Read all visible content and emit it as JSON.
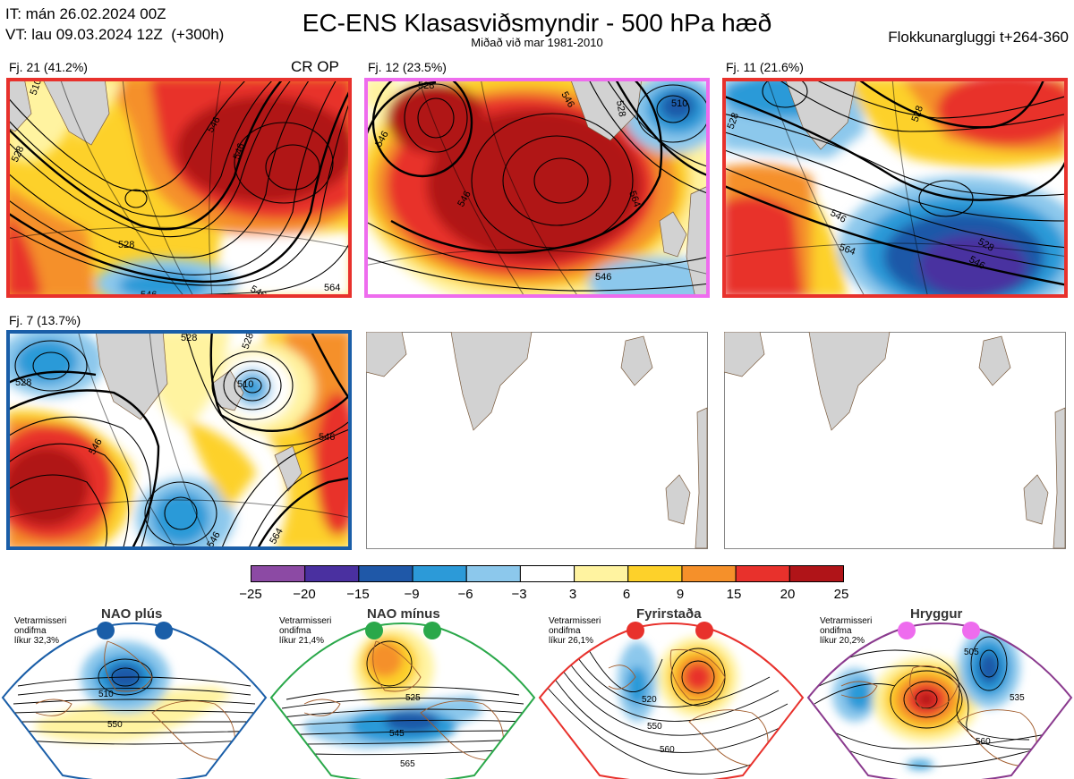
{
  "header": {
    "it_line": "IT: mán 26.02.2024 00Z",
    "vt_line": "VT: lau 09.03.2024 12Z  (+300h)",
    "title": "EC-ENS Klasasviðsmyndir - 500 hPa hæð",
    "subtitle": "Miðað við mar 1981-2010",
    "window": "Flokkunargluggi t+264-360"
  },
  "panels": [
    {
      "label": "Fj. 21 (41.2%)",
      "tag": "CR OP",
      "border": "#e8312c",
      "contours": [
        "510",
        "528",
        "528",
        "546",
        "546",
        "546",
        "564",
        "546"
      ]
    },
    {
      "label": "Fj. 12 (23.5%)",
      "tag": "",
      "border": "#ee6cee",
      "contours": [
        "528",
        "546",
        "546",
        "546",
        "564",
        "510",
        "528",
        "546"
      ]
    },
    {
      "label": "Fj. 11 (21.6%)",
      "tag": "",
      "border": "#e8312c",
      "contours": [
        "528",
        "528",
        "546",
        "564",
        "528",
        "546"
      ]
    },
    {
      "label": "Fj. 7 (13.7%)",
      "tag": "",
      "border": "#1a5ea8",
      "contours": [
        "528",
        "528",
        "546",
        "510",
        "546",
        "528",
        "546",
        "564"
      ]
    }
  ],
  "colorbar": {
    "ticks": [
      "−25",
      "−20",
      "−15",
      "−9",
      "−6",
      "−3",
      "3",
      "6",
      "9",
      "15",
      "20",
      "25"
    ],
    "colors": [
      "#8c4aa4",
      "#4a30a0",
      "#1f58a8",
      "#2c9ad8",
      "#8cc8ec",
      "#ffffff",
      "#fff3a0",
      "#fdd12a",
      "#f5902a",
      "#e8312c",
      "#b01418"
    ]
  },
  "regimes": [
    {
      "title": "NAO plús",
      "color": "#1a5ea8",
      "dot_color": "#1a5ea8",
      "info": [
        "Vetrarmisseri",
        "ondifma",
        "líkur 32,3%"
      ],
      "contours": [
        "510",
        "550"
      ]
    },
    {
      "title": "NAO mínus",
      "color": "#2aa84a",
      "dot_color": "#2aa84a",
      "info": [
        "Vetrarmisseri",
        "ondifma",
        "líkur 21,4%"
      ],
      "contours": [
        "525",
        "545",
        "565"
      ]
    },
    {
      "title": "Fyrirstaða",
      "color": "#e8312c",
      "dot_color": "#e8312c",
      "info": [
        "Vetrarmisseri",
        "ondifma",
        "líkur 26,1%"
      ],
      "contours": [
        "520",
        "550",
        "560"
      ]
    },
    {
      "title": "Hryggur",
      "color": "#8a3a8e",
      "dot_color": "#ee6cee",
      "info": [
        "Vetrarmisseri",
        "ondifma",
        "líkur 20,2%"
      ],
      "contours": [
        "505",
        "535",
        "560"
      ]
    }
  ]
}
